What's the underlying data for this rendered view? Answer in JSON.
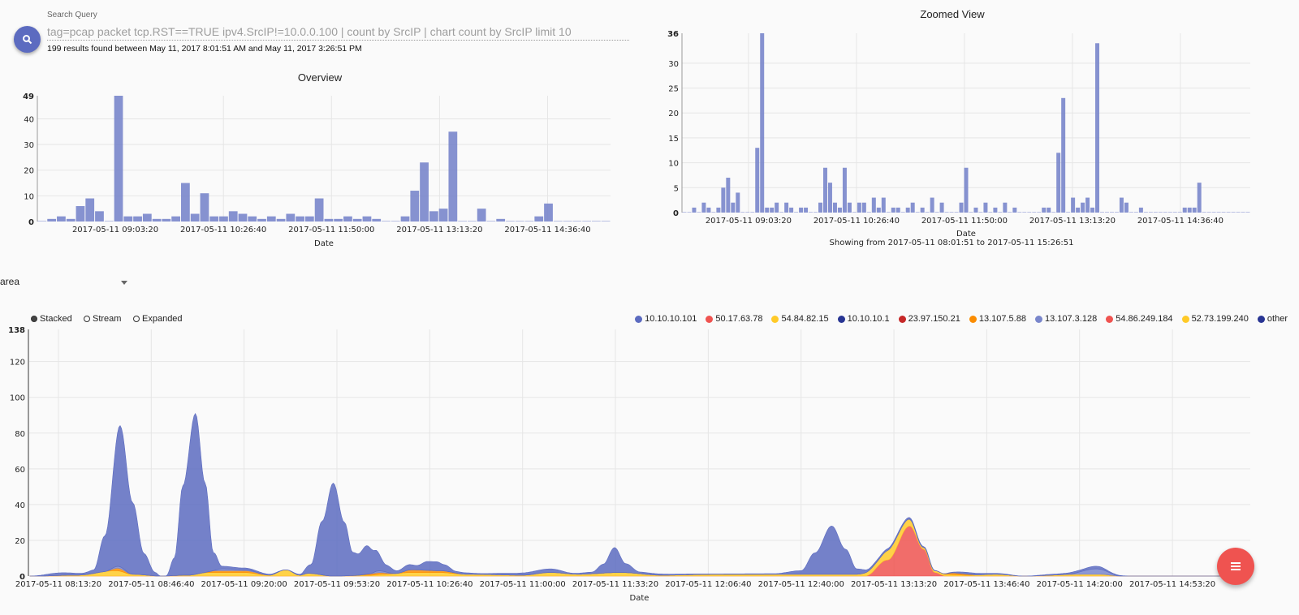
{
  "search": {
    "label": "Search Query",
    "query": "tag=pcap packet tcp.RST==TRUE ipv4.SrcIP!=10.0.0.100 | count by SrcIP | chart count by SrcIP limit 10",
    "results": "199 results found between May 11, 2017 8:01:51 AM and May 11, 2017 3:26:51 PM",
    "button_icon": "search-icon"
  },
  "overview": {
    "title": "Overview"
  },
  "zoomed": {
    "title": "Zoomed View",
    "range_text": "Showing from 2017-05-11 08:01:51 to 2017-05-11 15:26:51"
  },
  "controls": {
    "chart_type": "area",
    "modes": [
      {
        "label": "Stacked",
        "selected": true
      },
      {
        "label": "Stream",
        "selected": false
      },
      {
        "label": "Expanded",
        "selected": false
      }
    ]
  },
  "fab": {
    "icon": "menu-icon"
  },
  "chart_data": [
    {
      "id": "overview",
      "type": "bar",
      "title": "Overview",
      "xlabel": "Date",
      "ylabel": "",
      "ylim": [
        0,
        49
      ],
      "yticks": [
        "0",
        "10",
        "20",
        "30",
        "40",
        "49"
      ],
      "xdomain": [
        "08:03:12",
        "15:25:12"
      ],
      "xticks": [
        "2017-05-11 09:03:20",
        "2017-05-11 10:26:40",
        "2017-05-11 11:50:00",
        "2017-05-11 13:13:20",
        "2017-05-11 14:36:40"
      ],
      "color": "#7986cb",
      "values": [
        0,
        1,
        2,
        1,
        6,
        9,
        4,
        0,
        49,
        2,
        2,
        3,
        1,
        1,
        2,
        15,
        3,
        11,
        2,
        2,
        4,
        3,
        2,
        1,
        2,
        1,
        3,
        2,
        2,
        9,
        1,
        1,
        2,
        1,
        2,
        1,
        0,
        0,
        2,
        12,
        23,
        4,
        5,
        35,
        0,
        0,
        5,
        0,
        1,
        0,
        0,
        0,
        2,
        7,
        0,
        0,
        0,
        0,
        0,
        0
      ]
    },
    {
      "id": "zoomed",
      "type": "bar",
      "title": "Zoomed View",
      "xlabel": "Date",
      "ylim": [
        0,
        36
      ],
      "yticks": [
        "0",
        "5",
        "10",
        "15",
        "20",
        "25",
        "30",
        "36"
      ],
      "xdomain": [
        "08:12:00",
        "15:30:36"
      ],
      "xticks": [
        "2017-05-11 09:03:20",
        "2017-05-11 10:26:40",
        "2017-05-11 11:50:00",
        "2017-05-11 13:13:20",
        "2017-05-11 14:36:40"
      ],
      "color": "#7986cb",
      "values": [
        0,
        0,
        1,
        0,
        2,
        1,
        0,
        1,
        5,
        7,
        2,
        4,
        0,
        0,
        0,
        13,
        36,
        1,
        1,
        2,
        0,
        2,
        1,
        0,
        1,
        1,
        0,
        0,
        2,
        9,
        6,
        2,
        1,
        9,
        2,
        0,
        2,
        2,
        0,
        3,
        1,
        3,
        0,
        1,
        1,
        0,
        1,
        2,
        0,
        1,
        0,
        3,
        0,
        2,
        0,
        0,
        0,
        2,
        9,
        0,
        1,
        0,
        2,
        0,
        1,
        0,
        2,
        0,
        1,
        0,
        0,
        0,
        0,
        0,
        1,
        1,
        0,
        12,
        23,
        0,
        3,
        1,
        2,
        3,
        1,
        34,
        0,
        0,
        0,
        0,
        3,
        2,
        0,
        0,
        1,
        0,
        0,
        0,
        0,
        0,
        0,
        0,
        0,
        1,
        1,
        1,
        6,
        0,
        0,
        0,
        0,
        0,
        0,
        0,
        0,
        0,
        0
      ]
    },
    {
      "id": "area",
      "type": "area",
      "stacked": true,
      "xlabel": "Date",
      "ylim": [
        0,
        138
      ],
      "yticks": [
        "0",
        "20",
        "40",
        "60",
        "80",
        "100",
        "120",
        "138"
      ],
      "xdomain": [
        "08:02:33",
        "15:21:18"
      ],
      "x_unit": "minutes after 08:00",
      "xticks": [
        "2017-05-11 08:13:20",
        "2017-05-11 08:46:40",
        "2017-05-11 09:20:00",
        "2017-05-11 09:53:20",
        "2017-05-11 10:26:40",
        "2017-05-11 11:00:00",
        "2017-05-11 11:33:20",
        "2017-05-11 12:06:40",
        "2017-05-11 12:40:00",
        "2017-05-11 13:13:20",
        "2017-05-11 13:46:40",
        "2017-05-11 14:20:00",
        "2017-05-11 14:53:20"
      ],
      "legend_position": "top-right",
      "series": [
        {
          "name": "10.10.10.101",
          "color": "#5c6bc0",
          "points": [
            [
              3,
              0
            ],
            [
              14,
              1.5
            ],
            [
              22,
              1
            ],
            [
              26,
              2
            ],
            [
              30,
              20
            ],
            [
              35.5,
              79
            ],
            [
              40,
              40
            ],
            [
              44,
              12
            ],
            [
              48,
              2
            ],
            [
              50,
              0
            ],
            [
              52,
              0
            ],
            [
              55,
              10
            ],
            [
              58,
              50
            ],
            [
              62.5,
              90
            ],
            [
              66,
              50
            ],
            [
              69,
              10
            ],
            [
              72,
              1.5
            ],
            [
              80,
              1
            ],
            [
              90,
              0.5
            ],
            [
              95,
              0
            ],
            [
              100,
              0.5
            ],
            [
              104,
              5
            ],
            [
              108,
              30
            ],
            [
              112,
              52
            ],
            [
              116,
              30
            ],
            [
              119,
              13
            ],
            [
              121,
              12
            ],
            [
              124,
              16
            ],
            [
              127,
              12
            ],
            [
              131,
              4
            ],
            [
              135,
              1.5
            ],
            [
              139,
              3
            ],
            [
              142,
              2.5
            ],
            [
              146,
              5
            ],
            [
              149,
              5
            ],
            [
              152,
              3.5
            ],
            [
              156,
              1
            ],
            [
              165,
              0.5
            ],
            [
              175,
              1
            ],
            [
              190,
              2
            ],
            [
              198,
              0.5
            ],
            [
              205,
              1
            ],
            [
              209,
              5
            ],
            [
              213,
              14
            ],
            [
              217,
              5
            ],
            [
              222,
              1
            ],
            [
              235,
              0.5
            ],
            [
              250,
              0.2
            ],
            [
              270,
              0.3
            ],
            [
              280,
              2
            ],
            [
              285,
              12
            ],
            [
              291,
              27
            ],
            [
              296,
              14
            ],
            [
              300,
              3
            ],
            [
              305,
              1
            ],
            [
              312,
              1
            ],
            [
              319,
              1
            ],
            [
              325,
              0.5
            ],
            [
              330,
              0
            ],
            [
              340,
              1
            ],
            [
              350,
              0.5
            ],
            [
              360,
              0
            ],
            [
              370,
              0.5
            ],
            [
              380,
              1
            ],
            [
              386,
              1.5
            ],
            [
              392,
              0.5
            ],
            [
              398,
              0
            ],
            [
              430,
              0
            ]
          ]
        },
        {
          "name": "50.17.63.78",
          "color": "#ef5350",
          "points": [
            [
              303,
              0
            ],
            [
              311,
              9
            ],
            [
              319,
              28
            ],
            [
              324,
              15
            ],
            [
              328,
              2
            ],
            [
              332,
              0
            ]
          ]
        },
        {
          "name": "54.84.82.15",
          "color": "#ffca28",
          "points": [
            [
              5,
              0
            ],
            [
              20,
              0.5
            ],
            [
              34,
              3
            ],
            [
              40,
              1
            ],
            [
              50,
              0
            ],
            [
              60,
              0.5
            ],
            [
              67,
              2
            ],
            [
              80,
              2
            ],
            [
              89,
              0.5
            ],
            [
              95,
              3.5
            ],
            [
              100,
              0.5
            ],
            [
              103,
              1.5
            ],
            [
              112,
              0
            ],
            [
              125,
              0.5
            ],
            [
              130,
              1
            ],
            [
              140,
              2
            ],
            [
              150,
              2
            ],
            [
              160,
              1
            ],
            [
              180,
              0.5
            ],
            [
              190,
              2
            ],
            [
              200,
              1
            ],
            [
              215,
              2
            ],
            [
              230,
              0.5
            ],
            [
              250,
              1
            ],
            [
              270,
              1
            ],
            [
              285,
              1
            ],
            [
              300,
              1
            ],
            [
              307,
              3
            ],
            [
              313,
              6
            ],
            [
              318,
              4
            ],
            [
              323,
              1
            ],
            [
              330,
              1
            ],
            [
              340,
              0.5
            ],
            [
              350,
              1
            ],
            [
              360,
              0
            ],
            [
              380,
              1
            ],
            [
              387,
              1
            ],
            [
              395,
              0
            ],
            [
              430,
              0
            ]
          ]
        },
        {
          "name": "10.10.10.1",
          "color": "#283593",
          "points": []
        },
        {
          "name": "23.97.150.21",
          "color": "#c62828",
          "points": []
        },
        {
          "name": "13.107.5.88",
          "color": "#fb8c00",
          "points": [
            [
              30,
              0
            ],
            [
              35,
              1.5
            ],
            [
              40,
              0
            ],
            [
              65,
              0
            ],
            [
              70,
              1
            ],
            [
              80,
              1
            ],
            [
              90,
              0
            ],
            [
              120,
              0
            ],
            [
              128,
              1
            ],
            [
              135,
              0
            ],
            [
              140,
              1.5
            ],
            [
              150,
              1
            ],
            [
              160,
              0
            ],
            [
              330,
              0
            ],
            [
              335,
              1
            ],
            [
              345,
              0
            ]
          ]
        },
        {
          "name": "13.107.3.128",
          "color": "#7986cb",
          "points": [
            [
              30,
              0
            ],
            [
              35,
              1
            ],
            [
              40,
              0
            ],
            [
              68,
              0
            ],
            [
              72,
              1
            ],
            [
              80,
              0.5
            ],
            [
              90,
              0
            ],
            [
              125,
              0
            ],
            [
              128,
              1
            ],
            [
              135,
              0
            ],
            [
              375,
              0
            ],
            [
              386,
              3
            ],
            [
              395,
              0
            ]
          ]
        },
        {
          "name": "54.86.249.184",
          "color": "#ef5350",
          "points": []
        },
        {
          "name": "52.73.199.240",
          "color": "#ffca28",
          "points": []
        },
        {
          "name": "other",
          "color": "#283593",
          "points": []
        }
      ]
    }
  ]
}
